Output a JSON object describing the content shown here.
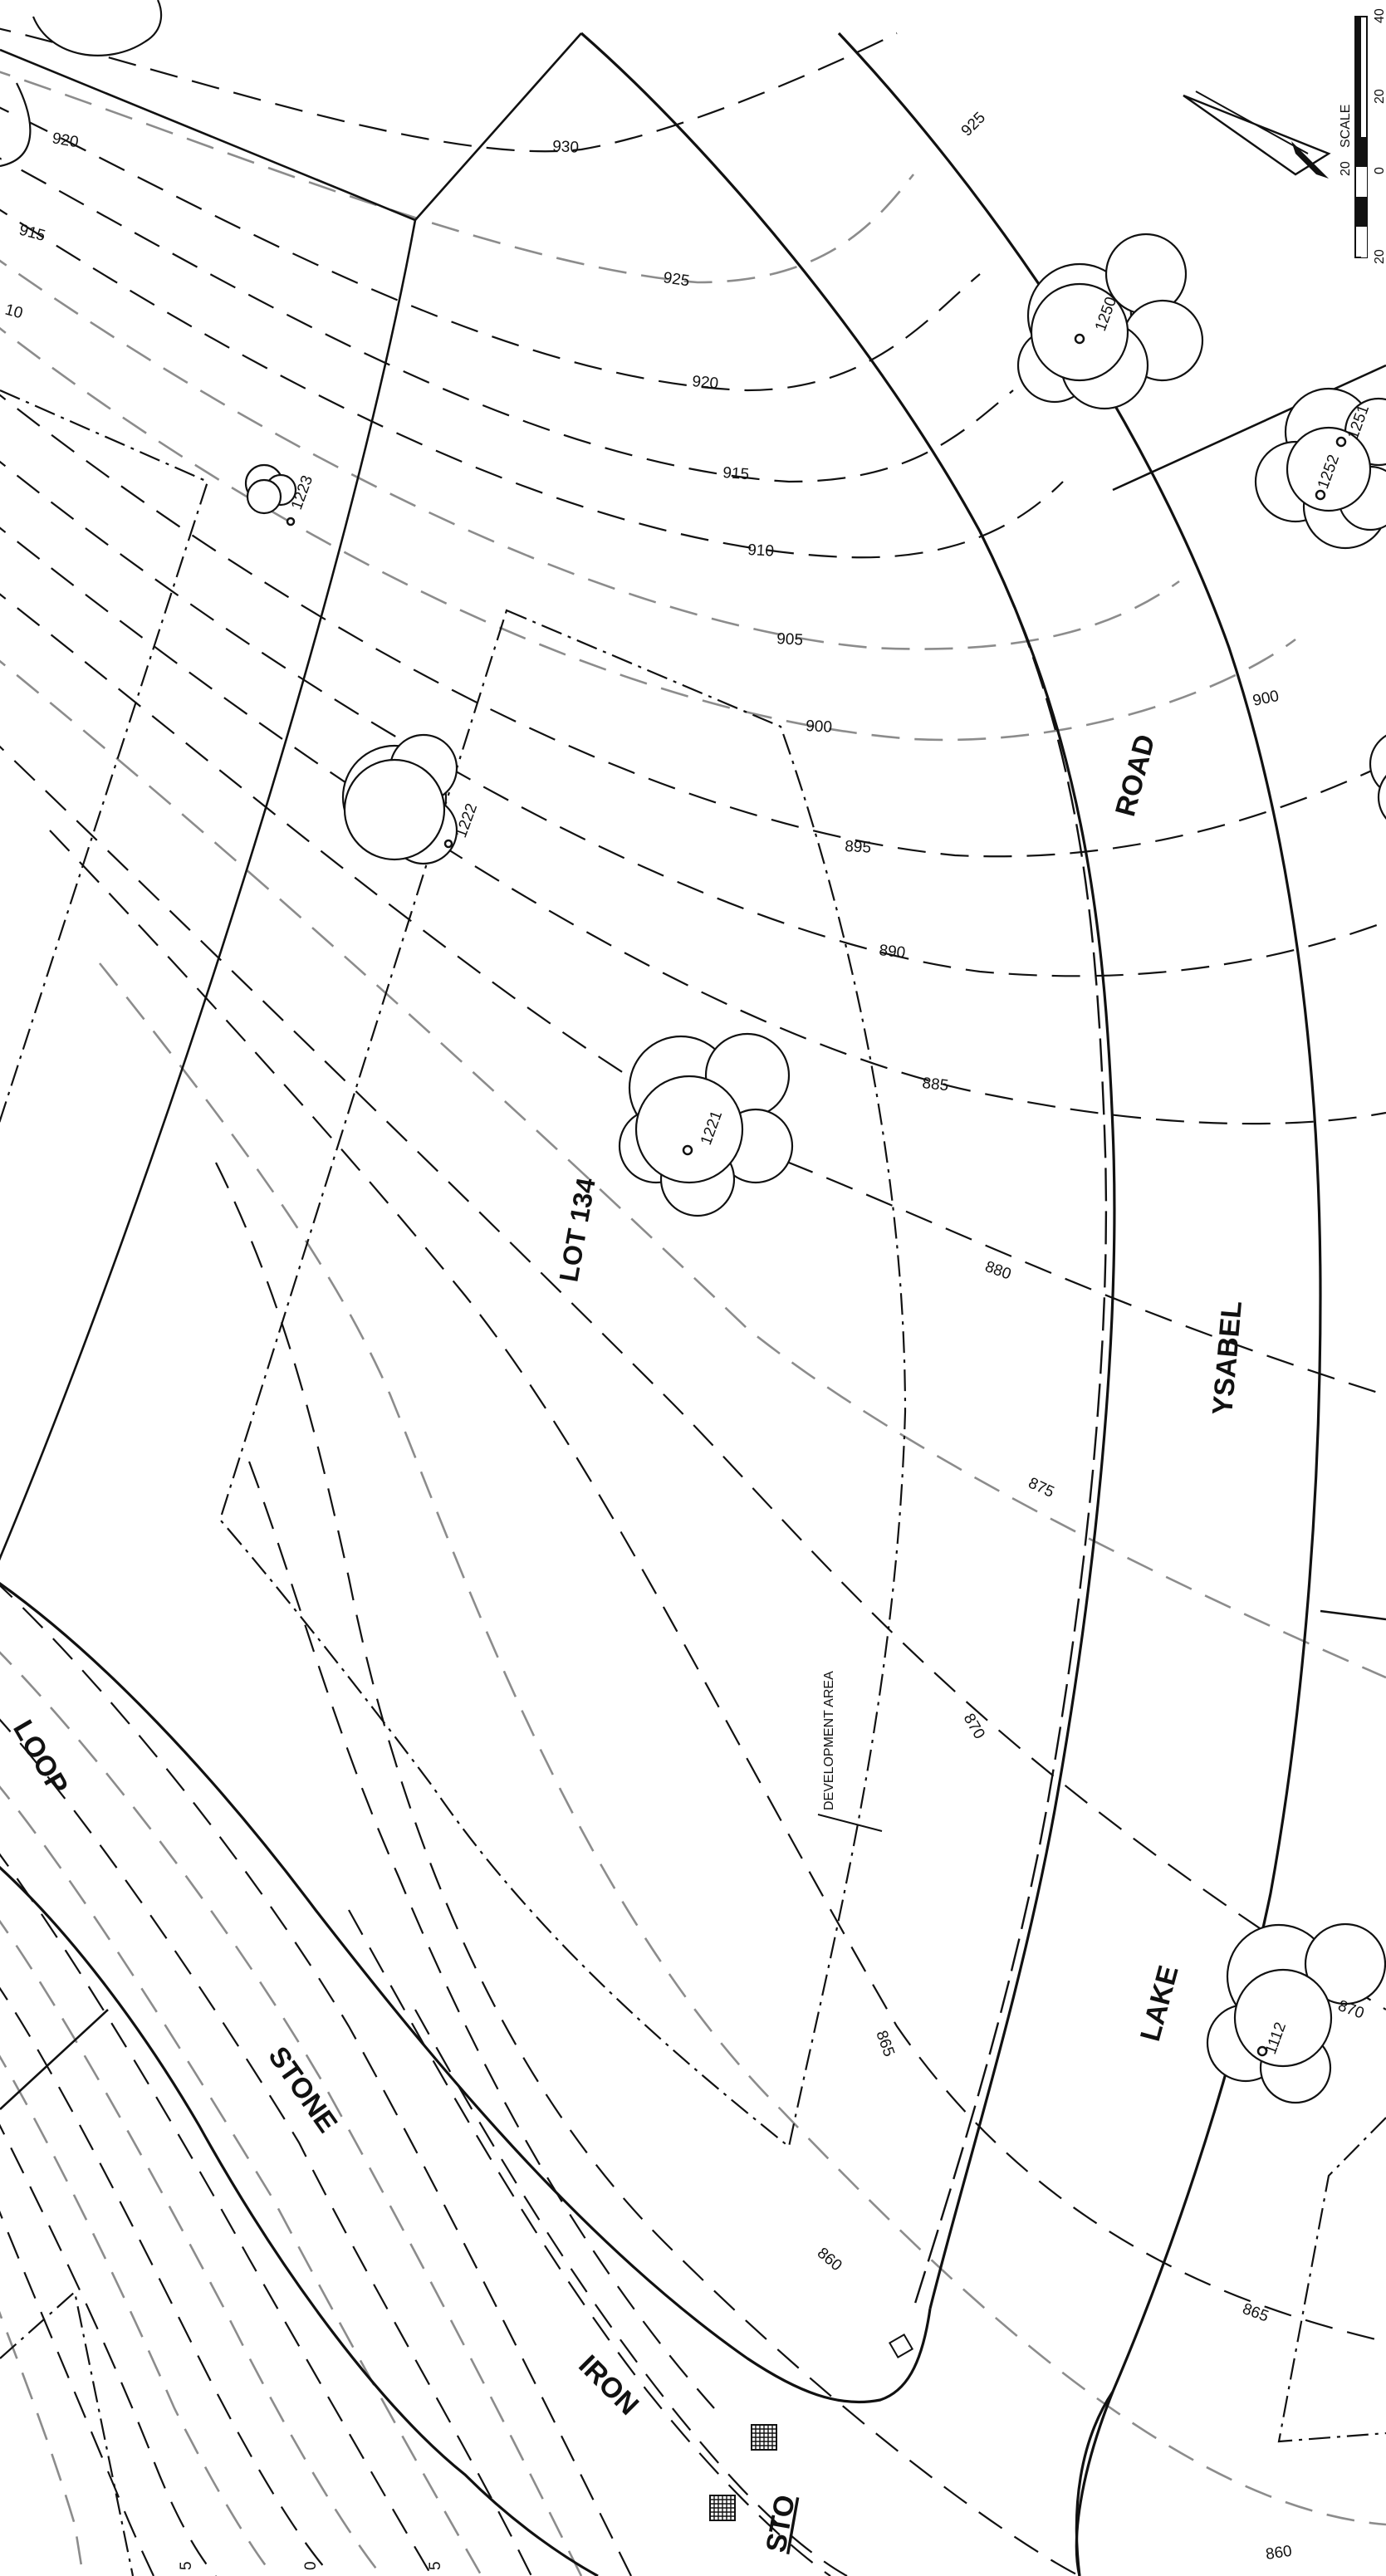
{
  "lot": {
    "label": "LOT 134"
  },
  "development_area": {
    "label": "DEVELOPMENT AREA"
  },
  "roads": {
    "ysabel_road": [
      "YSABEL",
      "ROAD"
    ],
    "lake": "LAKE",
    "iron_stone_loop": [
      "IRON",
      "STONE",
      "LOOP"
    ],
    "stone_partial": "STO"
  },
  "contours": {
    "labels": [
      "930",
      "925",
      "920",
      "915",
      "910",
      "905",
      "900",
      "895",
      "890",
      "885",
      "880",
      "875",
      "870",
      "865",
      "860"
    ],
    "left_edge_labels": [
      "920",
      "915",
      "10"
    ],
    "right_labels": [
      "925",
      "900",
      "870",
      "865",
      "860"
    ]
  },
  "trees": [
    {
      "id": "1250"
    },
    {
      "id": "1251"
    },
    {
      "id": "1252"
    },
    {
      "id": "1223"
    },
    {
      "id": "1222"
    },
    {
      "id": "1221"
    },
    {
      "id": "1112"
    }
  ],
  "scale": {
    "label": "SCALE",
    "ticks": [
      "40",
      "20",
      "0",
      "20"
    ]
  },
  "bottom_edge_labels": [
    "5",
    "0",
    "5"
  ]
}
